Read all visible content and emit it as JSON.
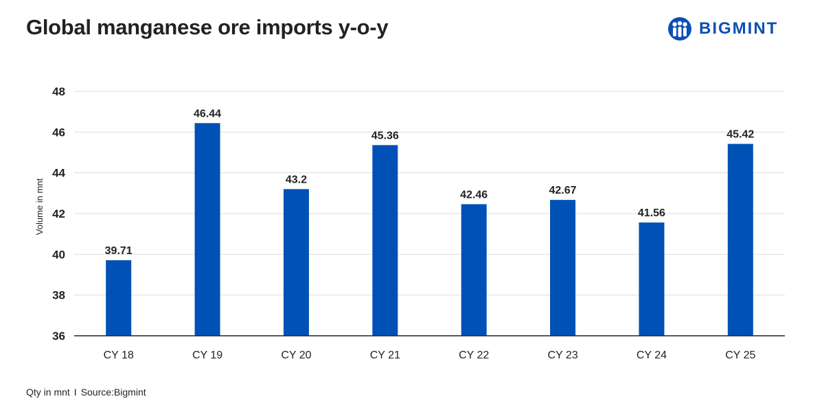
{
  "title": "Global manganese ore imports y-o-y",
  "logo": {
    "text": "BIGMINT",
    "color": "#0b4fb3"
  },
  "footer": {
    "qty": "Qty in mnt",
    "separator": "I",
    "source": "Source:Bigmint"
  },
  "colors": {
    "bar": "#0051b5",
    "grid": "#dcdcdc",
    "axis": "#222222",
    "text": "#222222"
  },
  "chart_data": {
    "type": "bar",
    "categories": [
      "CY 18",
      "CY 19",
      "CY 20",
      "CY 21",
      "CY 22",
      "CY 23",
      "CY 24",
      "CY 25"
    ],
    "values": [
      39.71,
      46.44,
      43.2,
      45.36,
      42.46,
      42.67,
      41.56,
      45.42
    ],
    "value_labels": [
      "39.71",
      "46.44",
      "43.2",
      "45.36",
      "42.46",
      "42.67",
      "41.56",
      "45.42"
    ],
    "xlabel": "",
    "ylabel": "Volume in mnt",
    "ylim": [
      36,
      48
    ],
    "yticks": [
      36,
      38,
      40,
      42,
      44,
      46,
      48
    ],
    "grid": true,
    "legend": "none"
  }
}
